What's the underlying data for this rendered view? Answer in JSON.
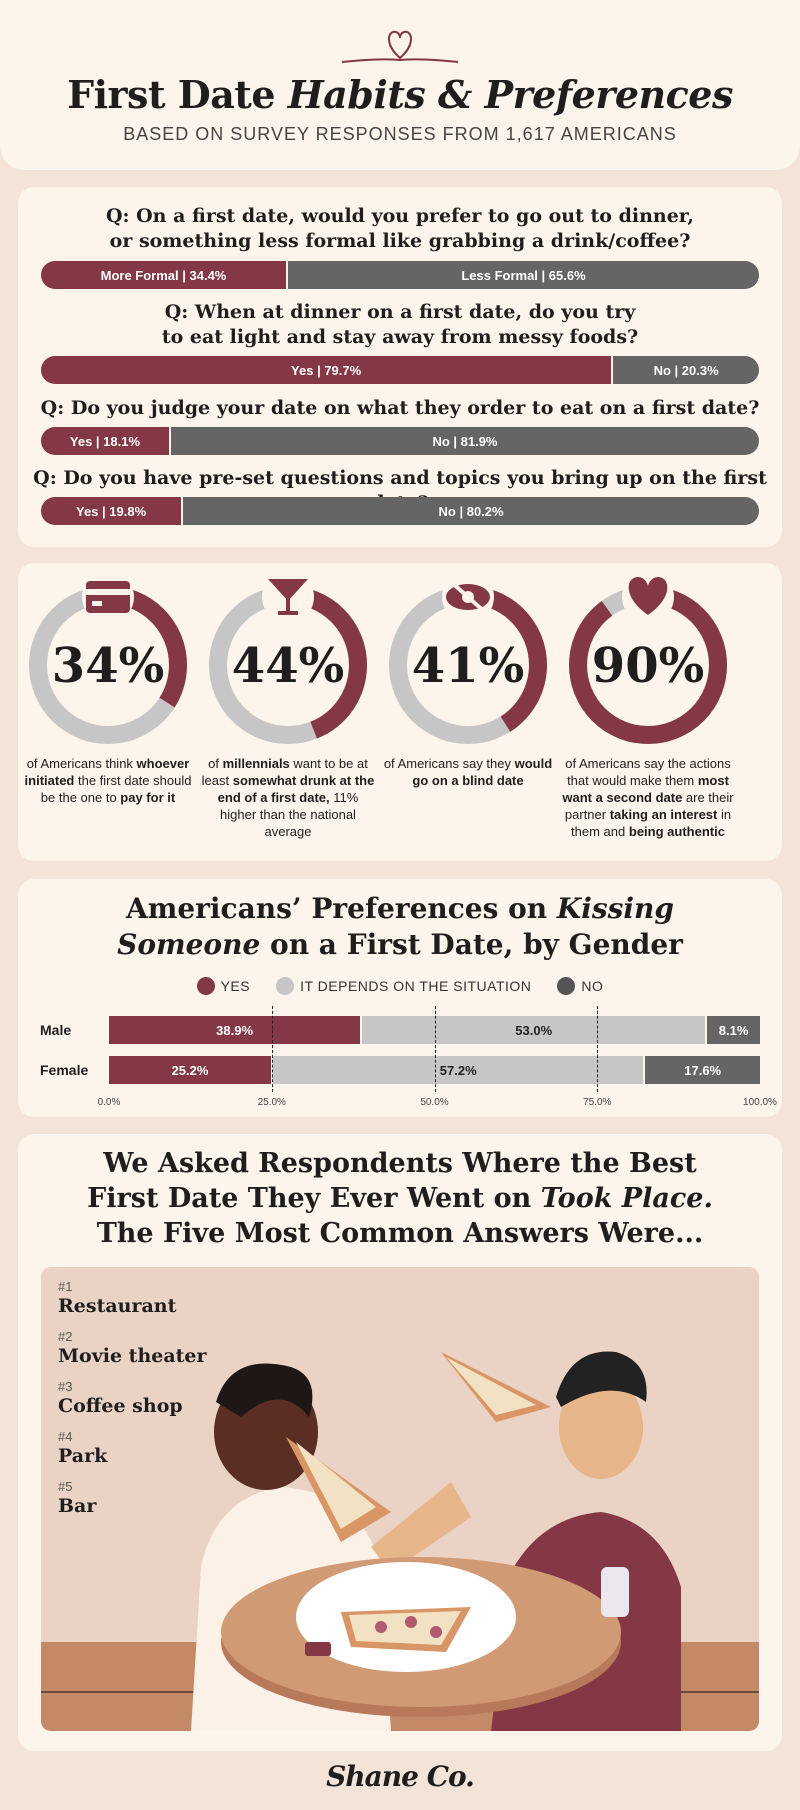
{
  "header": {
    "title_part1": "First Date ",
    "title_italic": "Habits & Preferences",
    "subtitle": "BASED ON SURVEY RESPONSES FROM 1,617 AMERICANS"
  },
  "questions": [
    {
      "question": "Q: On a first date, would you prefer to go out to dinner,\nor something less formal like grabbing a drink/coffee?",
      "a_label": "More Formal | 34.4%",
      "a_value": 34.4,
      "b_label": "Less Formal | 65.6%",
      "b_value": 65.6
    },
    {
      "question": "Q: When at dinner on a first date, do you try\nto eat light and stay away from messy foods?",
      "a_label": "Yes | 79.7%",
      "a_value": 79.7,
      "b_label": "No | 20.3%",
      "b_value": 20.3
    },
    {
      "question": "Q: Do you judge your date on what they order to eat on a first date?",
      "a_label": "Yes | 18.1%",
      "a_value": 18.1,
      "b_label": "No | 81.9%",
      "b_value": 81.9
    },
    {
      "question": "Q: Do you have pre-set questions and topics you bring up on the first date?",
      "a_label": "Yes | 19.8%",
      "a_value": 19.8,
      "b_label": "No | 80.2%",
      "b_value": 80.2
    }
  ],
  "stats": [
    {
      "value_label": "34%",
      "value": 34,
      "icon": "credit-card-icon",
      "desc": [
        {
          "t": "of Americans think ",
          "b": false
        },
        {
          "t": "whoever initiated",
          "b": true
        },
        {
          "t": " the first date should be the one to ",
          "b": false
        },
        {
          "t": "pay for it",
          "b": true
        }
      ]
    },
    {
      "value_label": "44%",
      "value": 44,
      "icon": "cocktail-glass-icon",
      "desc": [
        {
          "t": "of ",
          "b": false
        },
        {
          "t": "millennials",
          "b": true
        },
        {
          "t": " want to be at least ",
          "b": false
        },
        {
          "t": "somewhat drunk at the end of a first date,",
          "b": true
        },
        {
          "t": " 11% higher than the national average",
          "b": false
        }
      ]
    },
    {
      "value_label": "41%",
      "value": 41,
      "icon": "blindfold-eye-icon",
      "desc": [
        {
          "t": "of Americans say they ",
          "b": false
        },
        {
          "t": "would go on a blind date",
          "b": true
        }
      ]
    },
    {
      "value_label": "90%",
      "value": 90,
      "icon": "heart-icon",
      "desc": [
        {
          "t": "of Americans say the actions that would make them ",
          "b": false
        },
        {
          "t": "most want a second date",
          "b": true
        },
        {
          "t": " are their partner ",
          "b": false
        },
        {
          "t": "taking an interest",
          "b": true
        },
        {
          "t": " in them and ",
          "b": false
        },
        {
          "t": "being authentic",
          "b": true
        }
      ]
    }
  ],
  "kissing": {
    "title_line1_a": "Americans’ Preferences on ",
    "title_line1_b": "Kissing",
    "title_line2_a": "Someone",
    "title_line2_b": " on a First Date, by Gender",
    "legend": [
      "YES",
      "IT DEPENDS ON THE SITUATION",
      "NO"
    ]
  },
  "chart_data": {
    "type": "bar",
    "orientation": "horizontal-stacked",
    "categories": [
      "Male",
      "Female"
    ],
    "series": [
      {
        "name": "YES",
        "values": [
          38.9,
          25.2
        ],
        "labels": [
          "38.9%",
          "25.2%"
        ]
      },
      {
        "name": "IT DEPENDS ON THE SITUATION",
        "values": [
          53.0,
          57.2
        ],
        "labels": [
          "53.0%",
          "57.2%"
        ]
      },
      {
        "name": "NO",
        "values": [
          8.1,
          17.6
        ],
        "labels": [
          "8.1%",
          "17.6%"
        ]
      }
    ],
    "xticks": [
      "0.0%",
      "25.0%",
      "50.0%",
      "75.0%",
      "100.0%"
    ],
    "xlim": [
      0,
      100
    ],
    "legend_position": "top-center",
    "colors": {
      "yes": "#843744",
      "depends": "#c6c6c6",
      "no": "#666565"
    }
  },
  "places": {
    "title_line1": "We Asked Respondents Where the Best",
    "title_line2_a": "First Date They Ever Went on ",
    "title_line2_b": "Took Place.",
    "title_line3": "The Five Most Common Answers Were...",
    "ranks": [
      {
        "num": "#1",
        "name": "Restaurant"
      },
      {
        "num": "#2",
        "name": "Movie theater"
      },
      {
        "num": "#3",
        "name": "Coffee shop"
      },
      {
        "num": "#4",
        "name": "Park"
      },
      {
        "num": "#5",
        "name": "Bar"
      }
    ]
  },
  "footer": {
    "logo": "Shane Co."
  },
  "colors": {
    "accent": "#843744",
    "dark_gray": "#666565",
    "light_gray": "#c6c6c6",
    "card": "#fdf4ec",
    "page": "#f3e4d7"
  }
}
